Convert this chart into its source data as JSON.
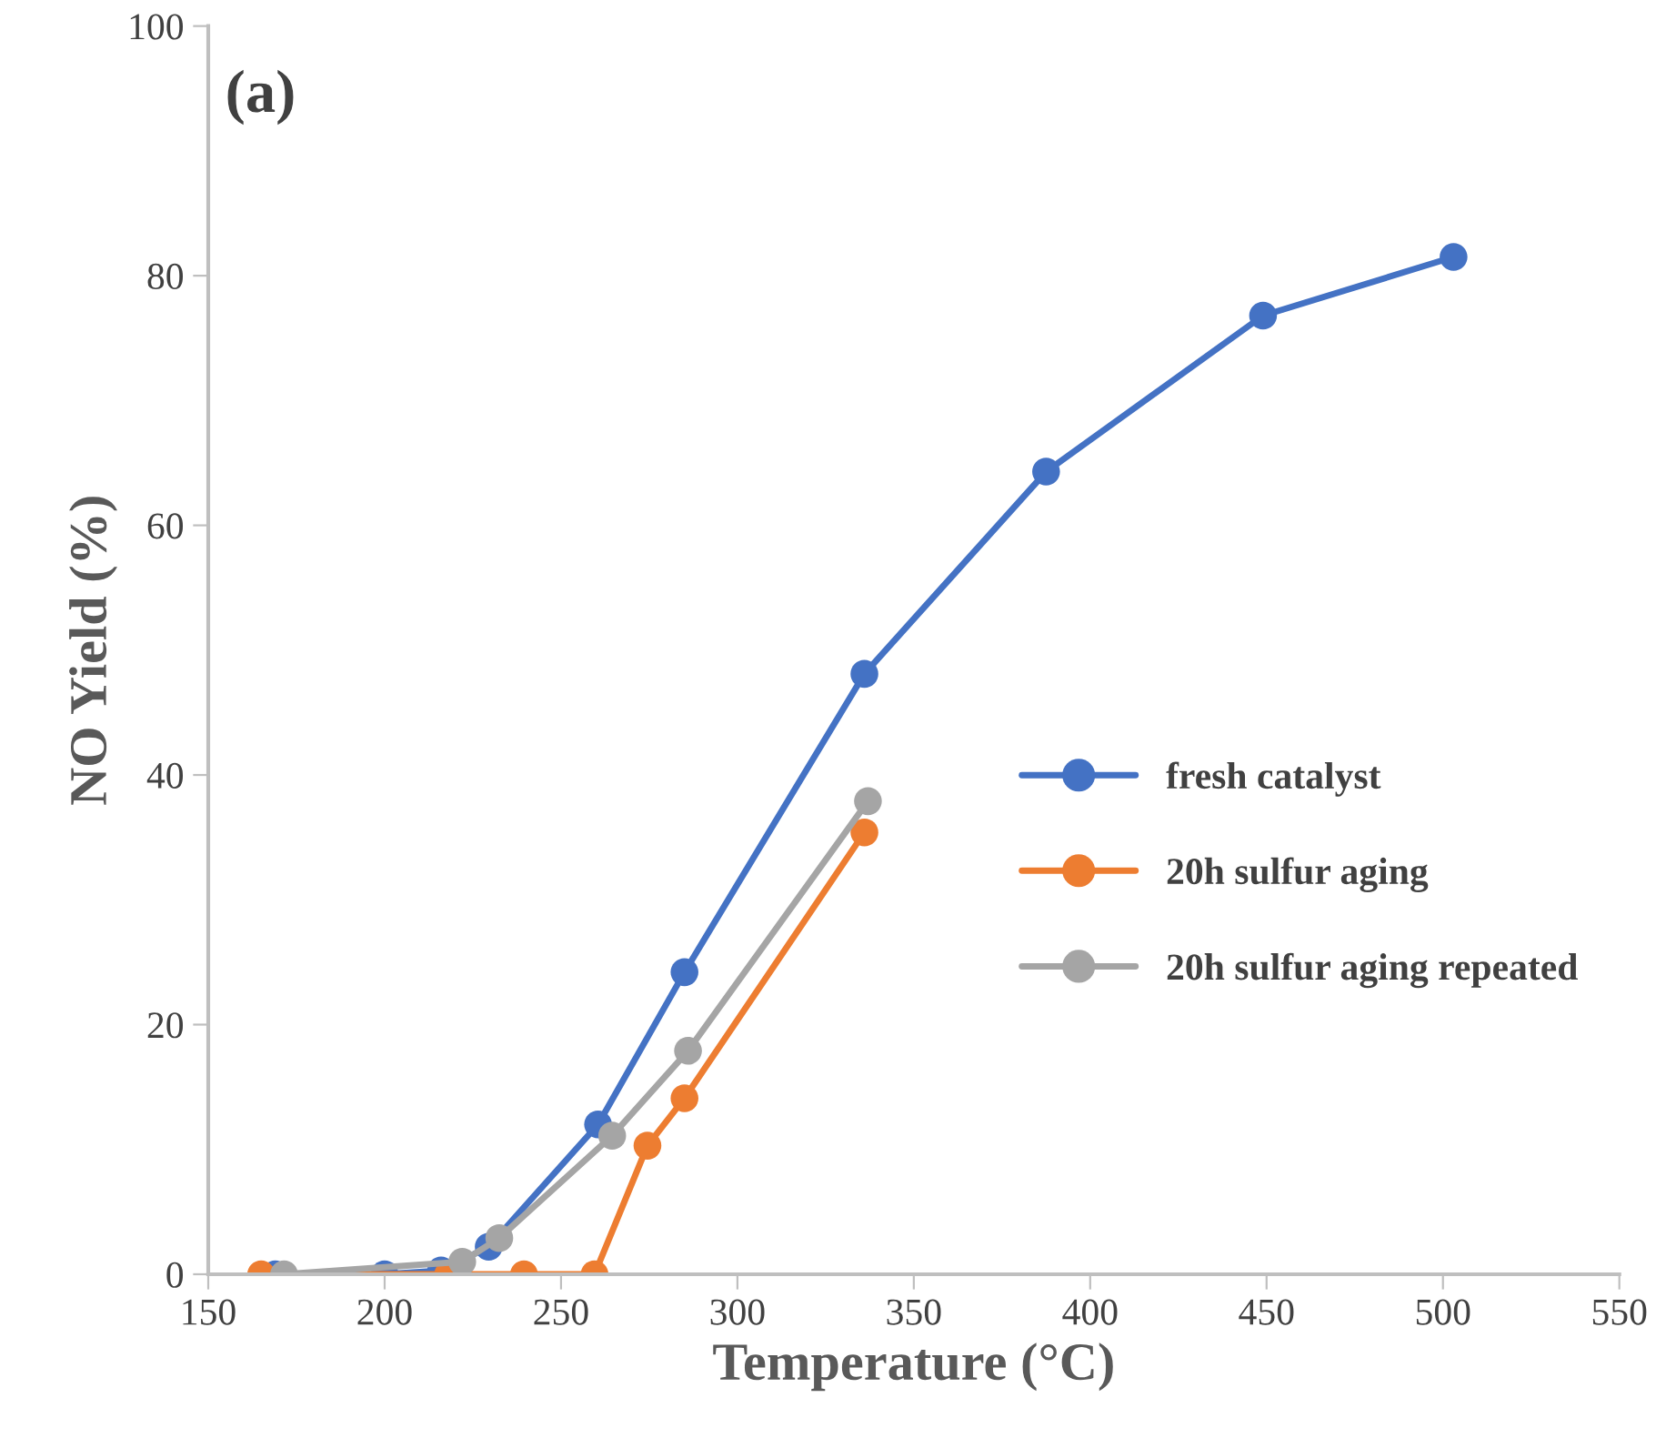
{
  "chart_data": {
    "type": "line",
    "xlabel": "Temperature (°C)",
    "ylabel": "NO Yield (%)",
    "annotations": [
      "(a)"
    ],
    "xlim": [
      150,
      550
    ],
    "xticks": [
      150,
      200,
      250,
      300,
      350,
      400,
      450,
      500,
      550
    ],
    "ylim": [
      0,
      100
    ],
    "yticks": [
      0,
      20,
      40,
      60,
      80,
      100
    ],
    "grid": false,
    "legend": "right",
    "marker": "circle",
    "line_style": "solid",
    "series": [
      {
        "name": "fresh catalyst",
        "color": "#4472c4",
        "x": [
          169,
          200,
          216,
          229.5,
          260.5,
          285,
          336,
          387.5,
          449,
          503
        ],
        "values": [
          0,
          0,
          0.3,
          2.2,
          12.0,
          24.2,
          48.1,
          64.3,
          76.8,
          81.5
        ]
      },
      {
        "name": "20h sulfur aging",
        "color": "#ed7d31",
        "x": [
          165,
          218,
          239.5,
          259.5,
          274.5,
          285,
          336
        ],
        "values": [
          0,
          0,
          0,
          0,
          10.3,
          14.1,
          35.4
        ]
      },
      {
        "name": "20h sulfur aging repeated",
        "color": "#a5a5a5",
        "x": [
          171.5,
          222,
          232.5,
          264.5,
          286,
          337
        ],
        "values": [
          0,
          1.0,
          2.9,
          11.1,
          17.9,
          37.9
        ]
      }
    ]
  }
}
